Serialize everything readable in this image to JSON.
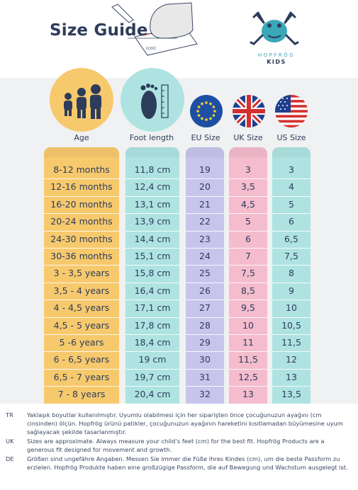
{
  "title": "Size Guide",
  "sketch_label": "(cm)",
  "brand": {
    "name": "HOPFRÖG",
    "sub": "KIDS"
  },
  "columns": {
    "age": "Age",
    "foot": "Foot length",
    "eu": "EU Size",
    "uk": "UK Size",
    "us": "US Size"
  },
  "colors": {
    "age": "#f7c96d",
    "foot": "#aee3e2",
    "eu": "#c8c5ec",
    "uk": "#f4bccd",
    "us": "#aee3e2",
    "icon_circle_yellow": "#f7c96d",
    "icon_circle_teal": "#aee3e2"
  },
  "rows": [
    {
      "age": "8-12 months",
      "foot": "11,8 cm",
      "eu": "19",
      "uk": "3",
      "us": "3"
    },
    {
      "age": "12-16 months",
      "foot": "12,4 cm",
      "eu": "20",
      "uk": "3,5",
      "us": "4"
    },
    {
      "age": "16-20 months",
      "foot": "13,1 cm",
      "eu": "21",
      "uk": "4,5",
      "us": "5"
    },
    {
      "age": "20-24 months",
      "foot": "13,9 cm",
      "eu": "22",
      "uk": "5",
      "us": "6"
    },
    {
      "age": "24-30 months",
      "foot": "14,4 cm",
      "eu": "23",
      "uk": "6",
      "us": "6,5"
    },
    {
      "age": "30-36 months",
      "foot": "15,1 cm",
      "eu": "24",
      "uk": "7",
      "us": "7,5"
    },
    {
      "age": "3 - 3,5 years",
      "foot": "15,8 cm",
      "eu": "25",
      "uk": "7,5",
      "us": "8"
    },
    {
      "age": "3,5 - 4 years",
      "foot": "16,4 cm",
      "eu": "26",
      "uk": "8,5",
      "us": "9"
    },
    {
      "age": "4 - 4,5 years",
      "foot": "17,1 cm",
      "eu": "27",
      "uk": "9,5",
      "us": "10"
    },
    {
      "age": "4,5 - 5 years",
      "foot": "17,8 cm",
      "eu": "28",
      "uk": "10",
      "us": "10,5"
    },
    {
      "age": "5 -6 years",
      "foot": "18,4 cm",
      "eu": "29",
      "uk": "11",
      "us": "11,5"
    },
    {
      "age": "6 - 6,5 years",
      "foot": "19 cm",
      "eu": "30",
      "uk": "11,5",
      "us": "12"
    },
    {
      "age": "6,5 - 7 years",
      "foot": "19,7 cm",
      "eu": "31",
      "uk": "12,5",
      "us": "13"
    },
    {
      "age": "7 - 8 years",
      "foot": "20,4 cm",
      "eu": "32",
      "uk": "13",
      "us": "13,5"
    }
  ],
  "notes": [
    {
      "code": "TR",
      "text": "Yaklaşık boyutlar kullanılmıştır. Uyumlu olabilmesi için her siparişten önce çocuğunuzun ayağını (cm cinsinden) ölçün. Hopfrög ürünü patikler, çocuğunuzun ayağının hareketini kısıtlamadan büyümesine uyum sağlayacak şekilde tasarlanmıştır."
    },
    {
      "code": "UK",
      "text": "Sizes are approximate. Always measure your child’s feet (cm) for the best fit. Hopfrög Products are a generous fit designed for movement and growth."
    },
    {
      "code": "DE",
      "text": "Größen sind ungefähre Angaben. Messen Sie immer die Füße Ihres Kindes (cm), um die beste Passform zu erzielen. Hopfrög Produkte haben eine großzügige Passform, die auf Bewegung und Wachstum ausgelegt ist."
    }
  ]
}
